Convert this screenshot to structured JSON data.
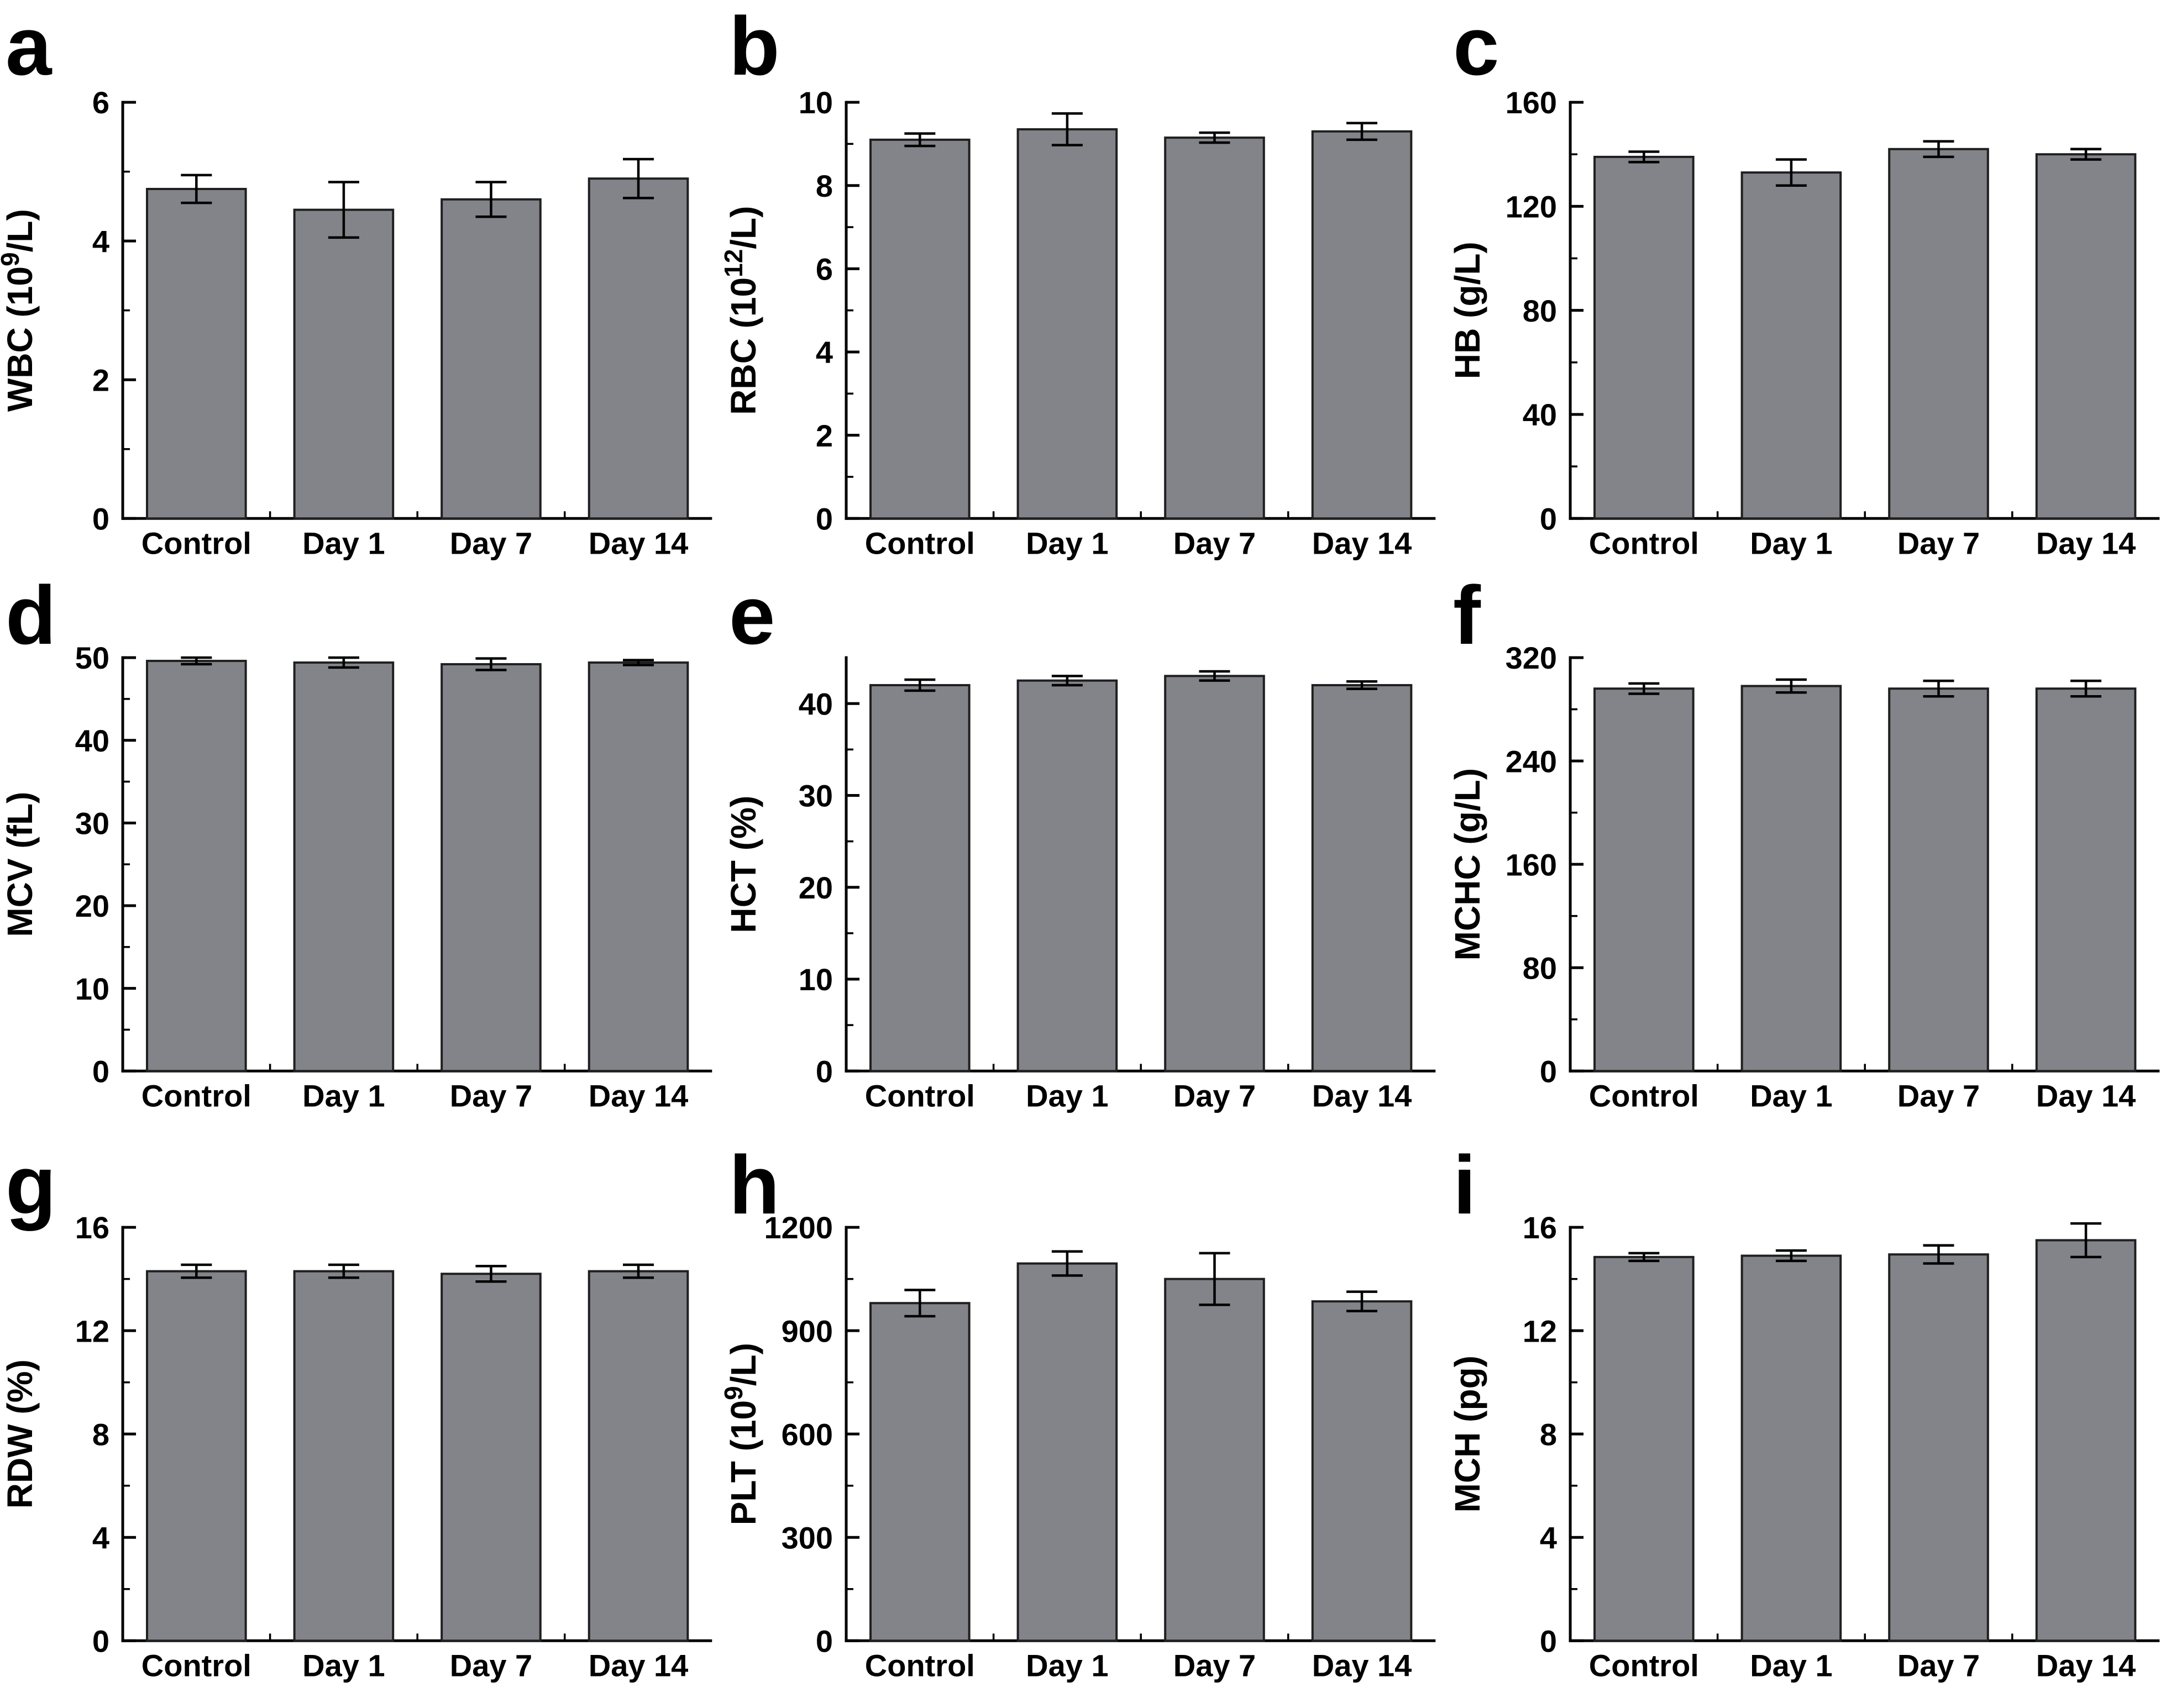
{
  "figure": {
    "background": "#ffffff",
    "bar_fill": "#828489",
    "bar_edge": "#1f1f1f",
    "axis_color": "#000000",
    "error_bar_color": "#000000",
    "categories": [
      "Control",
      "Day 1",
      "Day 7",
      "Day 14"
    ]
  },
  "chart_data": [
    {
      "panel": "a",
      "type": "bar",
      "categories": [
        "Control",
        "Day 1",
        "Day 7",
        "Day 14"
      ],
      "values": [
        4.75,
        4.45,
        4.6,
        4.9
      ],
      "errors": [
        0.2,
        0.4,
        0.25,
        0.28
      ],
      "ylabel": "WBC (10^9^/L)",
      "ylim": [
        0,
        6
      ],
      "yticks": [
        0,
        2,
        4,
        6
      ],
      "minor": 1,
      "grid": false,
      "legend": "none"
    },
    {
      "panel": "b",
      "type": "bar",
      "categories": [
        "Control",
        "Day 1",
        "Day 7",
        "Day 14"
      ],
      "values": [
        9.1,
        9.35,
        9.15,
        9.3
      ],
      "errors": [
        0.15,
        0.38,
        0.12,
        0.2
      ],
      "ylabel": "RBC (10^12^/L)",
      "ylim": [
        0,
        10
      ],
      "yticks": [
        0,
        2,
        4,
        6,
        8,
        10
      ],
      "minor": 1,
      "grid": false,
      "legend": "none"
    },
    {
      "panel": "c",
      "type": "bar",
      "categories": [
        "Control",
        "Day 1",
        "Day 7",
        "Day 14"
      ],
      "values": [
        139,
        133,
        142,
        140
      ],
      "errors": [
        2,
        5,
        3,
        2
      ],
      "ylabel": "HB (g/L)",
      "ylim": [
        0,
        160
      ],
      "yticks": [
        0,
        40,
        80,
        120,
        160
      ],
      "minor": 20,
      "grid": false,
      "legend": "none"
    },
    {
      "panel": "d",
      "type": "bar",
      "categories": [
        "Control",
        "Day 1",
        "Day 7",
        "Day 14"
      ],
      "values": [
        49.6,
        49.4,
        49.2,
        49.4
      ],
      "errors": [
        0.4,
        0.6,
        0.7,
        0.3
      ],
      "ylabel": "MCV (fL)",
      "ylim": [
        0,
        50
      ],
      "yticks": [
        0,
        10,
        20,
        30,
        40,
        50
      ],
      "minor": 5,
      "grid": false,
      "legend": "none"
    },
    {
      "panel": "e",
      "type": "bar",
      "categories": [
        "Control",
        "Day 1",
        "Day 7",
        "Day 14"
      ],
      "values": [
        42,
        42.5,
        43,
        42
      ],
      "errors": [
        0.6,
        0.5,
        0.5,
        0.4
      ],
      "ylabel": "HCT (%)",
      "ylim": [
        0,
        45
      ],
      "yticks": [
        0,
        10,
        20,
        30,
        40
      ],
      "minor": 5,
      "grid": false,
      "legend": "none"
    },
    {
      "panel": "f",
      "type": "bar",
      "categories": [
        "Control",
        "Day 1",
        "Day 7",
        "Day 14"
      ],
      "values": [
        296,
        298,
        296,
        296
      ],
      "errors": [
        4,
        5,
        6,
        6
      ],
      "ylabel": "MCHC (g/L)",
      "ylim": [
        0,
        320
      ],
      "yticks": [
        0,
        80,
        160,
        240,
        320
      ],
      "minor": 40,
      "grid": false,
      "legend": "none"
    },
    {
      "panel": "g",
      "type": "bar",
      "categories": [
        "Control",
        "Day 1",
        "Day 7",
        "Day 14"
      ],
      "values": [
        14.3,
        14.3,
        14.2,
        14.3
      ],
      "errors": [
        0.25,
        0.25,
        0.3,
        0.25
      ],
      "ylabel": "RDW (%)",
      "ylim": [
        0,
        16
      ],
      "yticks": [
        0,
        4,
        8,
        12,
        16
      ],
      "minor": 2,
      "grid": false,
      "legend": "none"
    },
    {
      "panel": "h",
      "type": "bar",
      "categories": [
        "Control",
        "Day 1",
        "Day 7",
        "Day 14"
      ],
      "values": [
        980,
        1095,
        1050,
        985
      ],
      "errors": [
        38,
        35,
        75,
        28
      ],
      "ylabel": "PLT (10^9^/L)",
      "ylim": [
        0,
        1200
      ],
      "yticks": [
        0,
        300,
        600,
        900,
        1200
      ],
      "minor": 150,
      "grid": false,
      "legend": "none"
    },
    {
      "panel": "i",
      "type": "bar",
      "categories": [
        "Control",
        "Day 1",
        "Day 7",
        "Day 14"
      ],
      "values": [
        14.85,
        14.9,
        14.95,
        15.5
      ],
      "errors": [
        0.15,
        0.2,
        0.35,
        0.65
      ],
      "ylabel": "MCH (pg)",
      "ylim": [
        0,
        16
      ],
      "yticks": [
        0,
        4,
        8,
        12,
        16
      ],
      "minor": 2,
      "grid": false,
      "legend": "none"
    }
  ]
}
